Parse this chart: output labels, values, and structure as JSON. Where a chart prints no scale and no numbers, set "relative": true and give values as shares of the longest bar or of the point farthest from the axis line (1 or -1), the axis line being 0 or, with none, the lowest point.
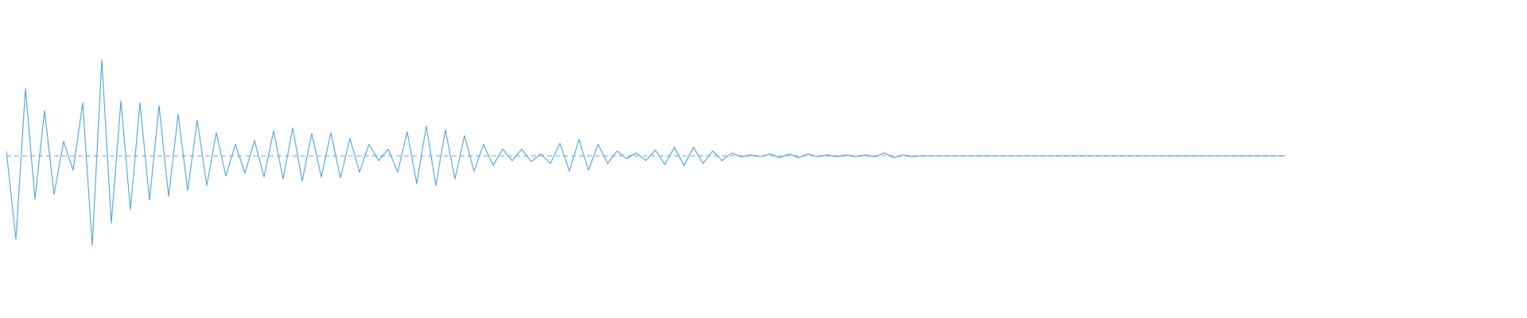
{
  "chart_data": {
    "type": "line",
    "relative": true,
    "line_style": "solid",
    "marker": "none",
    "ref_lines": [
      {
        "axis": "y",
        "value": 0,
        "color": "#5aaae0",
        "line_style": "dashed"
      }
    ],
    "categories": [
      null,
      null,
      null,
      null,
      null,
      null,
      null,
      null,
      null,
      null,
      null,
      null,
      null,
      null,
      null,
      null,
      null,
      null,
      null,
      null,
      null,
      null,
      null,
      null,
      null,
      null,
      null,
      null,
      null,
      null,
      null,
      null,
      null,
      null,
      null,
      null,
      null,
      null,
      null,
      null,
      null,
      null,
      null,
      null,
      null,
      null,
      null,
      null,
      null,
      null,
      null,
      null,
      null,
      null,
      null,
      null,
      null,
      null,
      null,
      null,
      null,
      null,
      null,
      null,
      null,
      null,
      null,
      null,
      null,
      null,
      null,
      null,
      null,
      null,
      null,
      null,
      null,
      null,
      null,
      null,
      null,
      null,
      null,
      null,
      null,
      null,
      null,
      null,
      null,
      null,
      null,
      null,
      null,
      null,
      null,
      null,
      null,
      null,
      null,
      null,
      null,
      null,
      null,
      null,
      null,
      null,
      null,
      null,
      null,
      null,
      null,
      null,
      null,
      null,
      null,
      null,
      null,
      null,
      null,
      null,
      null,
      null,
      null,
      null,
      null,
      null,
      null,
      null,
      null,
      null,
      null,
      null,
      null,
      null,
      null
    ],
    "series": [
      {
        "color": "#5aaae0",
        "values": [
          0.05,
          -0.87,
          0.7,
          -0.45,
          0.47,
          -0.4,
          0.15,
          -0.15,
          0.55,
          -0.93,
          1,
          -0.7,
          0.57,
          -0.56,
          0.55,
          -0.46,
          0.52,
          -0.42,
          0.43,
          -0.36,
          0.37,
          -0.31,
          0.24,
          -0.21,
          0.12,
          -0.18,
          0.16,
          -0.22,
          0.26,
          -0.24,
          0.29,
          -0.26,
          0.23,
          -0.22,
          0.24,
          -0.23,
          0.18,
          -0.17,
          0.12,
          -0.05,
          0.07,
          -0.17,
          0.25,
          -0.29,
          0.31,
          -0.31,
          0.27,
          -0.24,
          0.21,
          -0.16,
          0.12,
          -0.1,
          0.07,
          -0.05,
          0.07,
          -0.06,
          0.02,
          -0.08,
          0.13,
          -0.16,
          0.17,
          -0.15,
          0.12,
          -0.08,
          0.05,
          -0.03,
          0.03,
          -0.05,
          0.06,
          -0.09,
          0.09,
          -0.1,
          0.09,
          -0.08,
          0.05,
          -0.05,
          0.03,
          -0.01,
          0.01,
          -0.01,
          0.02,
          -0.02,
          0.02,
          -0.02,
          0.02,
          -0.01,
          0.01,
          -0.01,
          0.01,
          -0.01,
          0.01,
          -0.01,
          0.03,
          -0.02,
          0.01,
          -0.01,
          0,
          0,
          0,
          0,
          0,
          0,
          0,
          0,
          0,
          0,
          0,
          0,
          0,
          0,
          0,
          0,
          0,
          0,
          0,
          0,
          0,
          0,
          0,
          0,
          0,
          0,
          0,
          0,
          0,
          0,
          0,
          0,
          0,
          0,
          0,
          0,
          0,
          0,
          0
        ]
      }
    ]
  }
}
